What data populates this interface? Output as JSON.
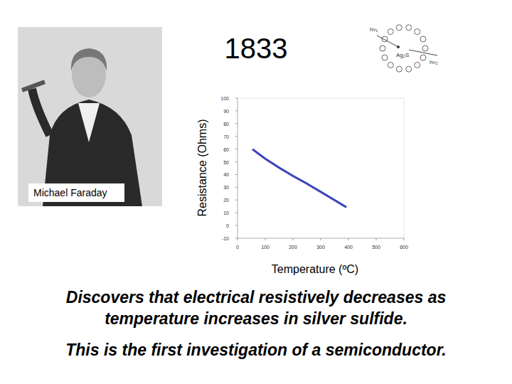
{
  "chart_data": {
    "type": "line",
    "x_label": "Temperature (ºC)",
    "y_label": "Resistance (Ohms)",
    "x": [
      54,
      100,
      150,
      200,
      250,
      300,
      350,
      392
    ],
    "values": [
      60,
      52.5,
      45.5,
      39,
      33,
      26.5,
      20,
      14.5
    ],
    "color": "#2f3fc8",
    "xlim": [
      0,
      600
    ],
    "ylim": [
      -10,
      100
    ],
    "xticks": [
      0,
      100,
      200,
      300,
      400,
      500,
      600
    ],
    "yticks": [
      -10,
      0,
      10,
      20,
      30,
      40,
      50,
      60,
      70,
      80,
      90,
      100
    ],
    "grid": false
  },
  "slide": {
    "year": "1833",
    "portrait_caption": "Michael Faraday",
    "icon_labels": [
      "hν₁",
      "Ag₂S",
      "hν₂"
    ],
    "caption_lines": [
      "Discovers that electrical resistively decreases as",
      "temperature increases in silver sulfide.",
      "This is the first investigation of a semiconductor."
    ]
  }
}
